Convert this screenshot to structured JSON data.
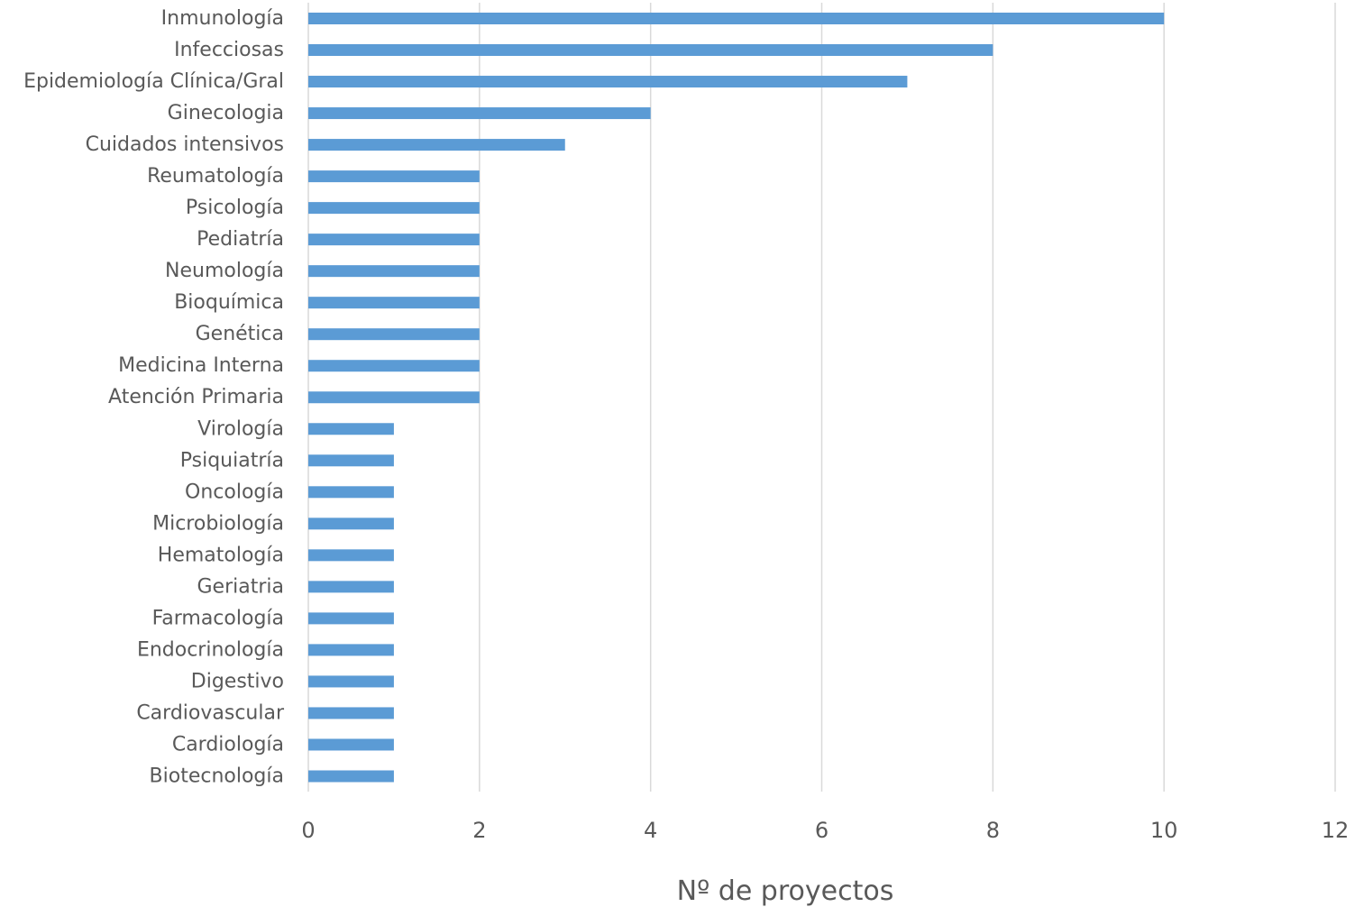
{
  "chart_data": {
    "type": "bar",
    "orientation": "horizontal",
    "categories": [
      "Inmunología",
      "Infecciosas",
      "Epidemiología Clínica/Gral",
      "Ginecologia",
      "Cuidados intensivos",
      "Reumatología",
      "Psicología",
      "Pediatría",
      "Neumología",
      "Bioquímica",
      "Genética",
      "Medicina Interna",
      "Atención Primaria",
      "Virología",
      "Psiquiatría",
      "Oncología",
      "Microbiología",
      "Hematología",
      "Geriatria",
      "Farmacología",
      "Endocrinología",
      "Digestivo",
      "Cardiovascular",
      "Cardiología",
      "Biotecnología"
    ],
    "values": [
      10,
      8,
      7,
      4,
      3,
      2,
      2,
      2,
      2,
      2,
      2,
      2,
      2,
      1,
      1,
      1,
      1,
      1,
      1,
      1,
      1,
      1,
      1,
      1,
      1
    ],
    "xlabel": "Nº de proyectos",
    "ylabel": "",
    "xlim": [
      0,
      12
    ],
    "xticks": [
      "0",
      "2",
      "4",
      "6",
      "8",
      "10",
      "12"
    ],
    "grid": "vertical",
    "legend": "none",
    "colors": {
      "bar": "#5B9BD5",
      "grid": "#D9D9D9",
      "text": "#595959"
    }
  }
}
